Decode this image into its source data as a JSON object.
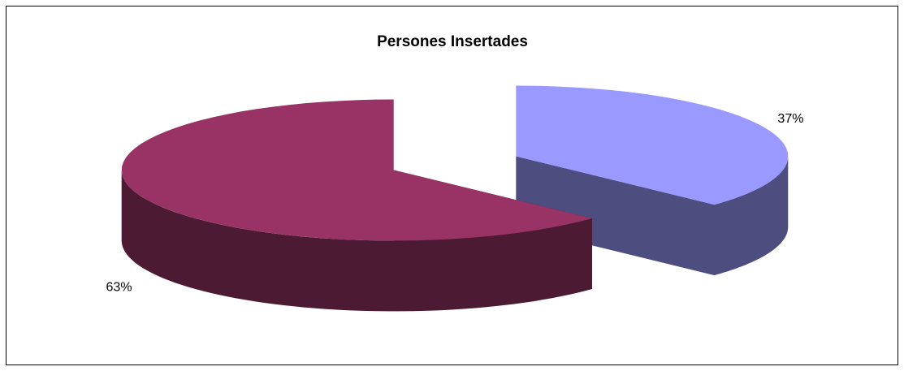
{
  "chart_data": {
    "type": "pie3d",
    "title": "Persones Insertades",
    "values": [
      37,
      63
    ],
    "value_labels": [
      "37%",
      "63%"
    ],
    "colors": [
      "#9999ff",
      "#993366"
    ],
    "side_colors": [
      "#4d4d80",
      "#4d1a33"
    ]
  }
}
